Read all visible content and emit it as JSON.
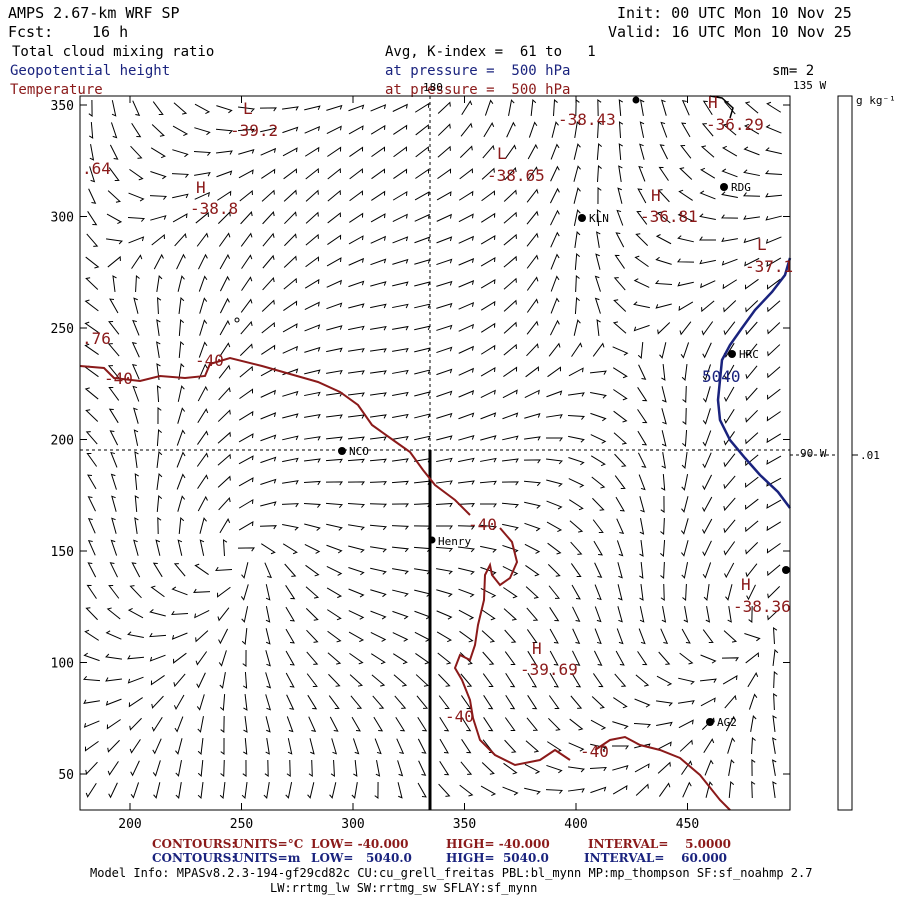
{
  "header": {
    "model": "AMPS 2.67-km WRF SP",
    "init": "Init: 00 UTC Mon 10 Nov 25",
    "fcst_label": "Fcst:",
    "fcst_value": "16 h",
    "valid": "Valid: 16 UTC Mon 10 Nov 25",
    "field1": "Total cloud mixing ratio",
    "field1_detail": "Avg, K-index =  61 to   1",
    "field2": "Geopotential height",
    "field2_detail": "at pressure =  500 hPa",
    "field3": "Temperature",
    "field3_detail": "at pressure =  500 hPa",
    "smoothing": "sm= 2"
  },
  "colorbar": {
    "unit": "g kg⁻¹",
    "tick": ".01"
  },
  "map": {
    "x_ticks": [
      "200",
      "250",
      "300",
      "350",
      "400",
      "450"
    ],
    "y_ticks": [
      "50",
      "100",
      "150",
      "200",
      "250",
      "300",
      "350"
    ],
    "meridian_labels": [
      "180",
      "135 W",
      "90 W"
    ],
    "stations": [
      "NCO",
      "Henry",
      "KLN",
      "RDG",
      "HRC",
      "AG2"
    ],
    "temp_contour_labels": [
      "-40",
      "-40",
      "-40",
      "-40",
      "-40"
    ],
    "height_contour_label": "5040",
    "extrema": [
      {
        "letter": "L",
        "value": "-39.2"
      },
      {
        "letter": "H",
        "value": "-38.8"
      },
      {
        "letter": "L",
        "value": "-38.65"
      },
      {
        "letter": "H",
        "value": "-36.81"
      },
      {
        "letter": "L",
        "value": "-37.1"
      },
      {
        "letter": "H",
        "value": "-38.36"
      },
      {
        "letter": "H",
        "value": "-39.69"
      },
      {
        "letter": "H",
        "value": "-36.29"
      },
      {
        "letter": "",
        "value": "-38.43"
      }
    ],
    "edge_labels": [
      ".64",
      ".76"
    ]
  },
  "footer": {
    "line1": {
      "contours": "CONTOURS:",
      "units": "UNITS=°C",
      "low": "LOW= -40.000",
      "high": "HIGH= -40.000",
      "interval": "INTERVAL=    5.0000"
    },
    "line2": {
      "contours": "CONTOURS:",
      "units": "UNITS=m",
      "low": "LOW=   5040.0",
      "high": "HIGH=  5040.0",
      "interval": "INTERVAL=    60.000"
    },
    "model_info": "Model Info: MPASv8.2.3-194-gf29cd82c CU:cu_grell_freitas PBL:bl_mynn MP:mp_thompson SF:sf_noahmp 2.7",
    "model_info2": "LW:rrtmg_lw SW:rrtmg_sw SFLAY:sf_mynn"
  },
  "colors": {
    "temperature": "#8b1a1a",
    "height": "#1a237e"
  }
}
